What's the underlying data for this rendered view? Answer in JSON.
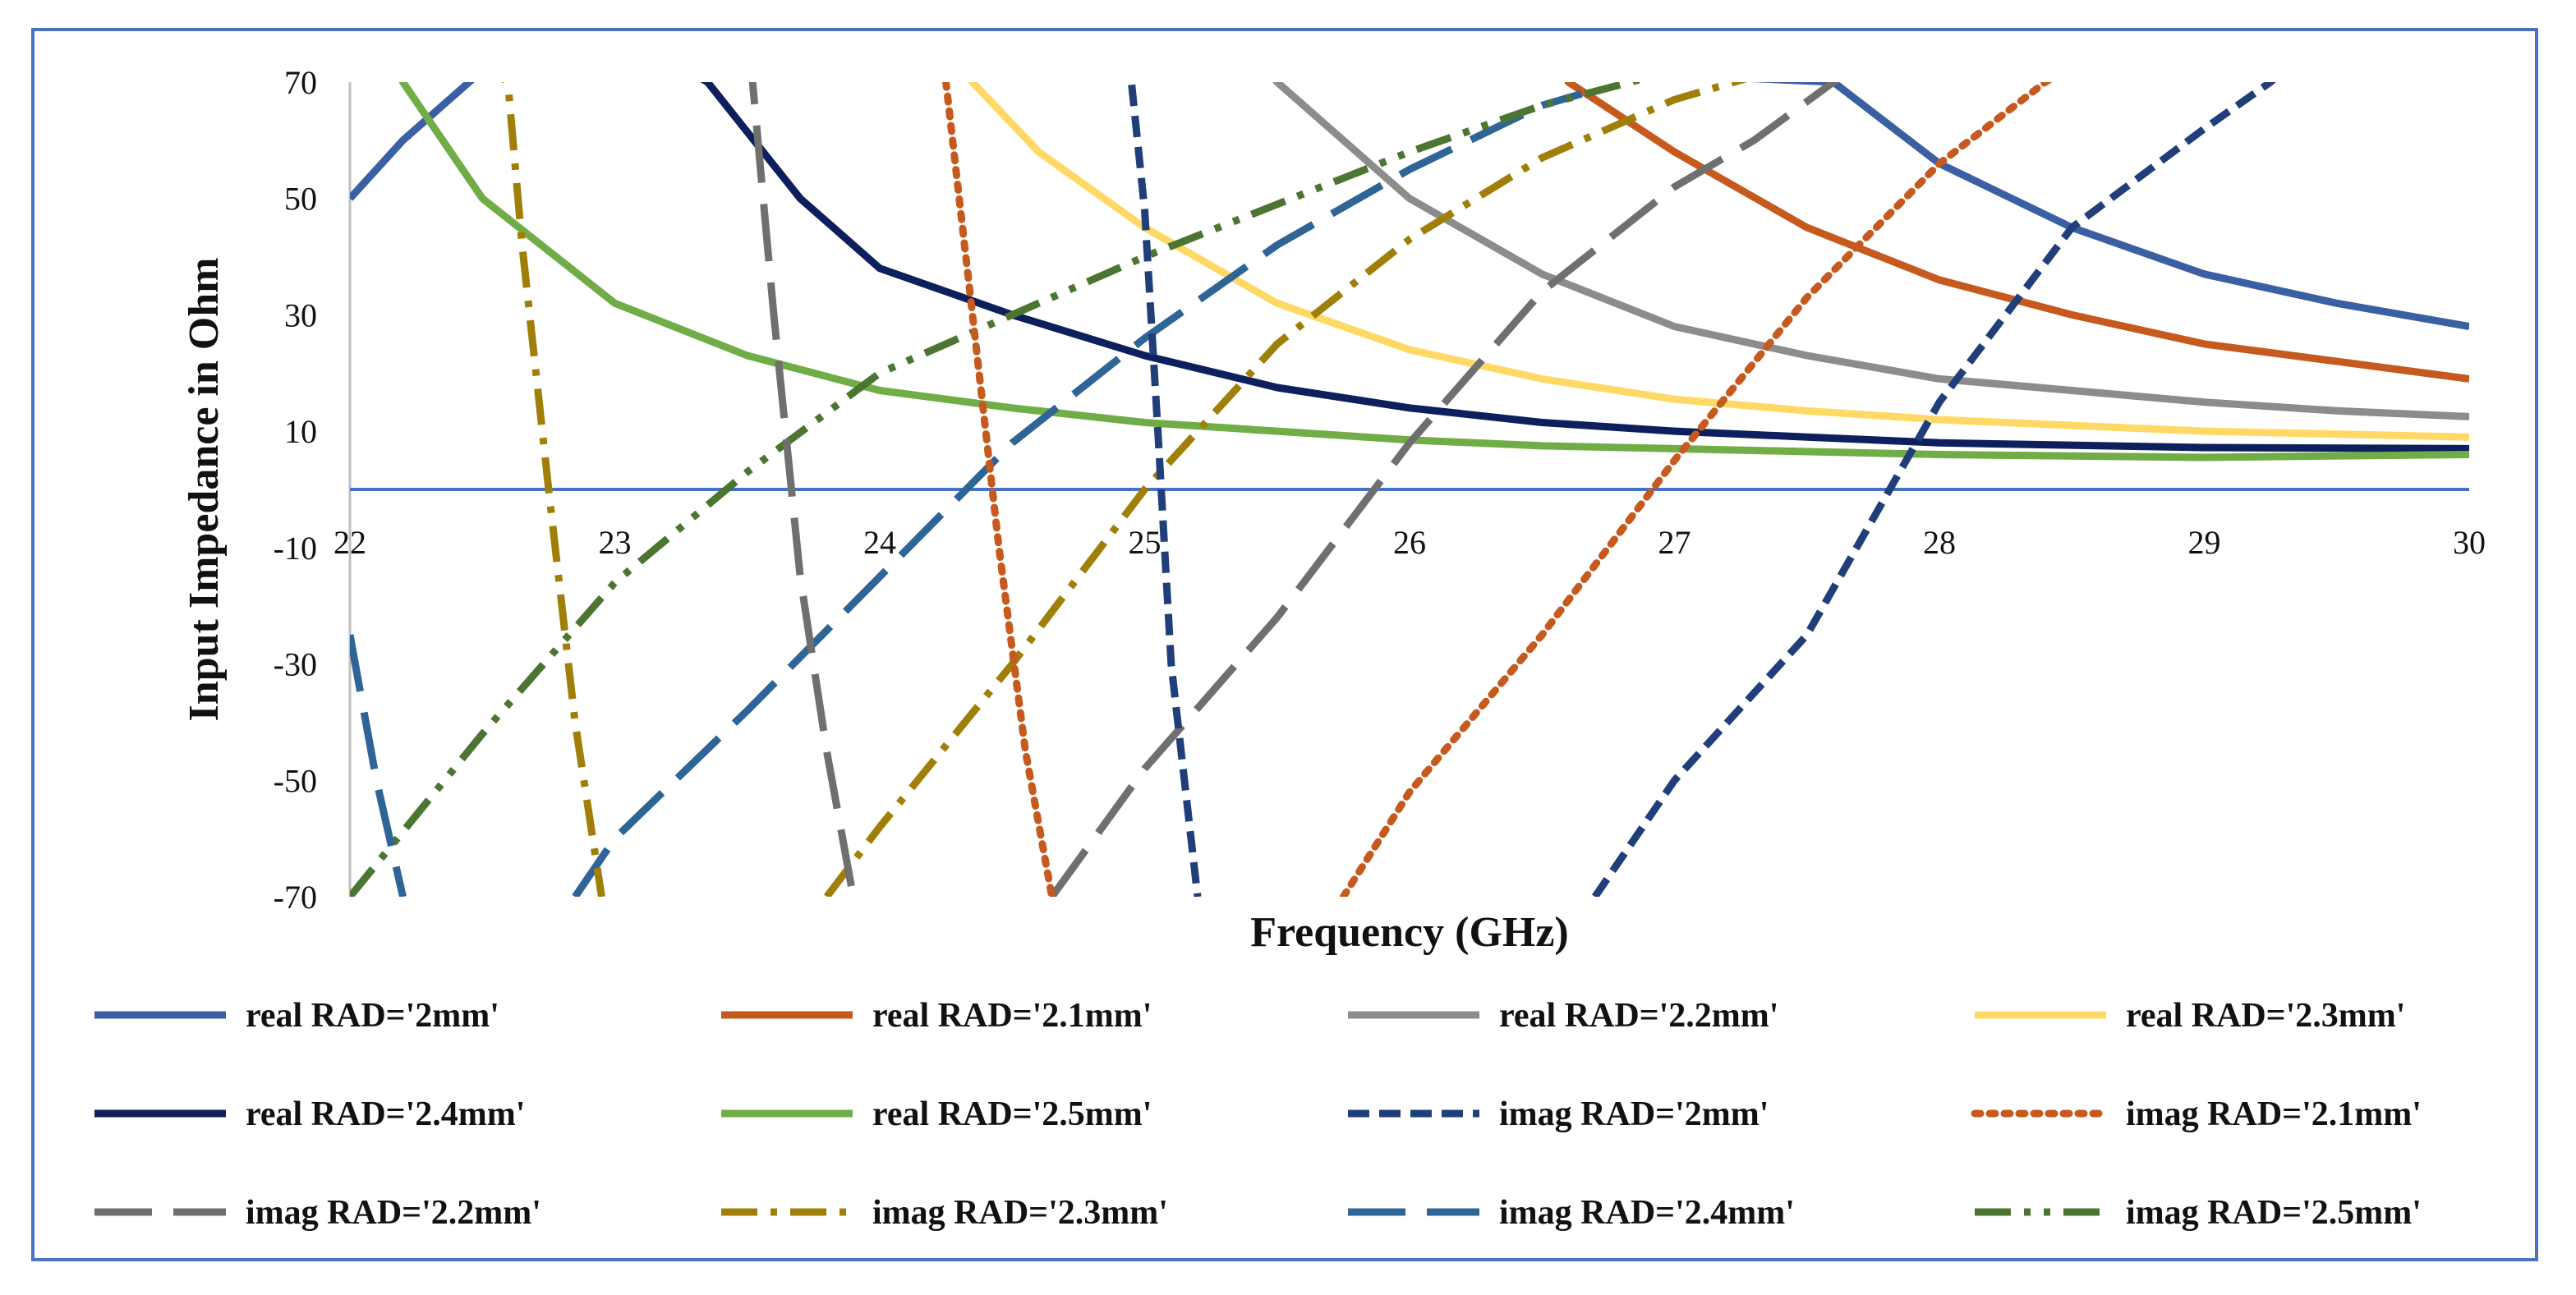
{
  "chart_data": {
    "type": "line",
    "title": "",
    "xlabel": "Frequency (GHz)",
    "ylabel": "Input Impedance in Ohm",
    "xlim": [
      22,
      30
    ],
    "ylim": [
      -70,
      70
    ],
    "x_ticks": [
      "22",
      "23",
      "24",
      "25",
      "26",
      "27",
      "28",
      "29",
      "30"
    ],
    "y_ticks": [
      "70",
      "50",
      "30",
      "10",
      "-10",
      "-30",
      "-50",
      "-70"
    ],
    "grid": false,
    "legend_position": "bottom",
    "series": [
      {
        "name": "real  RAD='2mm'",
        "kind": "real",
        "color": "#3a5fa3",
        "dash": "solid",
        "x": [
          22.0,
          22.2,
          22.45,
          22.7,
          27.6,
          28.0,
          28.5,
          29.0,
          29.5,
          30.0
        ],
        "y": [
          50,
          60,
          70,
          80,
          70,
          56,
          45,
          37,
          32,
          28
        ]
      },
      {
        "name": "real RAD='2.1mm'",
        "kind": "real",
        "color": "#c65a1e",
        "dash": "solid",
        "x": [
          26.5,
          26.6,
          27.0,
          27.5,
          28.0,
          28.5,
          29.0,
          29.5,
          30.0
        ],
        "y": [
          78,
          70,
          58,
          45,
          36,
          30,
          25,
          22,
          19
        ]
      },
      {
        "name": "real RAD='2.2mm'",
        "kind": "real",
        "color": "#8c8c8c",
        "dash": "solid",
        "x": [
          25.4,
          25.5,
          26.0,
          26.5,
          27.0,
          27.5,
          28.0,
          28.5,
          29.0,
          29.5,
          30.0
        ],
        "y": [
          76,
          70,
          50,
          37,
          28,
          23,
          19,
          17,
          15,
          13.5,
          12.5
        ]
      },
      {
        "name": "real RAD='2.3mm'",
        "kind": "real",
        "color": "#ffd966",
        "dash": "solid",
        "x": [
          24.25,
          24.35,
          24.6,
          25.0,
          25.5,
          26.0,
          26.5,
          27.0,
          27.5,
          28.0,
          29.0,
          30.0
        ],
        "y": [
          76,
          70,
          58,
          45,
          32,
          24,
          19,
          15.5,
          13.5,
          12,
          10,
          9
        ]
      },
      {
        "name": "real RAD='2.4mm'",
        "kind": "real",
        "color": "#0d1f5c",
        "dash": "solid",
        "x": [
          23.05,
          23.35,
          23.7,
          24.0,
          24.5,
          25.0,
          25.5,
          26.0,
          26.5,
          27.0,
          27.5,
          28.0,
          29.0,
          30.0
        ],
        "y": [
          78,
          70,
          50,
          38,
          30,
          23,
          17.5,
          14,
          11.5,
          10,
          9,
          8,
          7.2,
          7
        ]
      },
      {
        "name": "real RAD='2.5mm'",
        "kind": "real",
        "color": "#70ad47",
        "dash": "solid",
        "x": [
          22.1,
          22.2,
          22.5,
          23.0,
          23.5,
          24.0,
          24.5,
          25.0,
          25.5,
          26.0,
          26.5,
          27.0,
          28.0,
          29.0,
          30.0
        ],
        "y": [
          80,
          70,
          50,
          32,
          23,
          17,
          14,
          11.5,
          10,
          8.5,
          7.5,
          7,
          6,
          5.5,
          6
        ]
      },
      {
        "name": "imag RAD='2mm'",
        "kind": "imag",
        "color": "#203e7a",
        "dash": "short",
        "x": [
          26.7,
          27.0,
          27.5,
          28.0,
          28.5,
          29.0,
          29.25,
          29.4
        ],
        "y": [
          -70,
          -50,
          -25,
          15,
          45,
          62,
          70,
          76
        ]
      },
      {
        "name": "imag RAD='2.1mm'",
        "kind": "imag",
        "color": "#c65a1e",
        "dash": "dot",
        "x": [
          25.75,
          26.0,
          26.5,
          27.0,
          27.5,
          28.0,
          28.4,
          28.6
        ],
        "y": [
          -70,
          -52,
          -25,
          5,
          33,
          56,
          70,
          76
        ]
      },
      {
        "name": "imag RAD='2.2mm'",
        "kind": "imag",
        "color": "#6f6f6f",
        "dash": "long",
        "x": [
          24.65,
          25.0,
          25.5,
          26.0,
          26.5,
          27.0,
          27.3,
          27.6,
          27.8
        ],
        "y": [
          -70,
          -48,
          -22,
          8,
          34,
          52,
          60,
          70,
          76
        ]
      },
      {
        "name": "imag RAD='2.3mm'",
        "kind": "imag",
        "color": "#a07f08",
        "dash": "dashdot",
        "x": [
          23.8,
          24.0,
          24.5,
          25.0,
          25.5,
          26.0,
          26.5,
          27.0,
          27.3,
          27.5
        ],
        "y": [
          -70,
          -58,
          -30,
          0,
          25,
          43,
          57,
          67,
          71,
          76
        ]
      },
      {
        "name": "imag RAD='2.4mm'",
        "kind": "imag",
        "color": "#2e6496",
        "dash": "long",
        "x": [
          22.85,
          23.0,
          23.5,
          24.0,
          24.5,
          25.0,
          25.5,
          26.0,
          26.5,
          26.65
        ],
        "y": [
          -70,
          -60,
          -38,
          -15,
          8,
          26,
          42,
          55,
          66,
          68
        ]
      },
      {
        "name": "imag  RAD='2.5mm'",
        "kind": "imag",
        "color": "#4b7530",
        "dash": "dashdotdot",
        "x": [
          22.0,
          22.5,
          23.0,
          23.5,
          24.0,
          24.5,
          25.0,
          25.5,
          26.0,
          26.5,
          27.0,
          27.5
        ],
        "y": [
          -70,
          -42,
          -16,
          3,
          20,
          30,
          40,
          49,
          58,
          66,
          72,
          78
        ]
      },
      {
        "name": "imag RAD='2mm'",
        "kind": "imag",
        "color": "#203e7a",
        "dash": "short",
        "legend": false,
        "x": [
          24.9,
          24.95,
          25.0,
          25.05,
          25.1,
          25.2
        ],
        "y": [
          80,
          70,
          48,
          10,
          -30,
          -70
        ]
      },
      {
        "name": "imag RAD='2.1mm'",
        "kind": "imag",
        "color": "#c65a1e",
        "dash": "dot",
        "legend": false,
        "x": [
          24.2,
          24.25,
          24.35,
          24.45,
          24.55,
          24.65
        ],
        "y": [
          80,
          70,
          30,
          -10,
          -45,
          -70
        ]
      },
      {
        "name": "imag RAD='2.2mm'",
        "kind": "imag",
        "color": "#6f6f6f",
        "dash": "long",
        "legend": false,
        "x": [
          23.5,
          23.52,
          23.6,
          23.7,
          23.8,
          23.9
        ],
        "y": [
          76,
          70,
          30,
          -15,
          -45,
          -70
        ]
      },
      {
        "name": "imag RAD='2.3mm'",
        "kind": "imag",
        "color": "#a07f08",
        "dash": "dashdot",
        "legend": false,
        "x": [
          22.55,
          22.6,
          22.65,
          22.75,
          22.85,
          22.95
        ],
        "y": [
          76,
          68,
          42,
          0,
          -40,
          -70
        ]
      },
      {
        "name": "imag RAD='2.4mm'",
        "kind": "imag",
        "color": "#2e6496",
        "dash": "long",
        "legend": false,
        "x": [
          22.0,
          22.1,
          22.2
        ],
        "y": [
          -25,
          -50,
          -70
        ]
      }
    ]
  }
}
